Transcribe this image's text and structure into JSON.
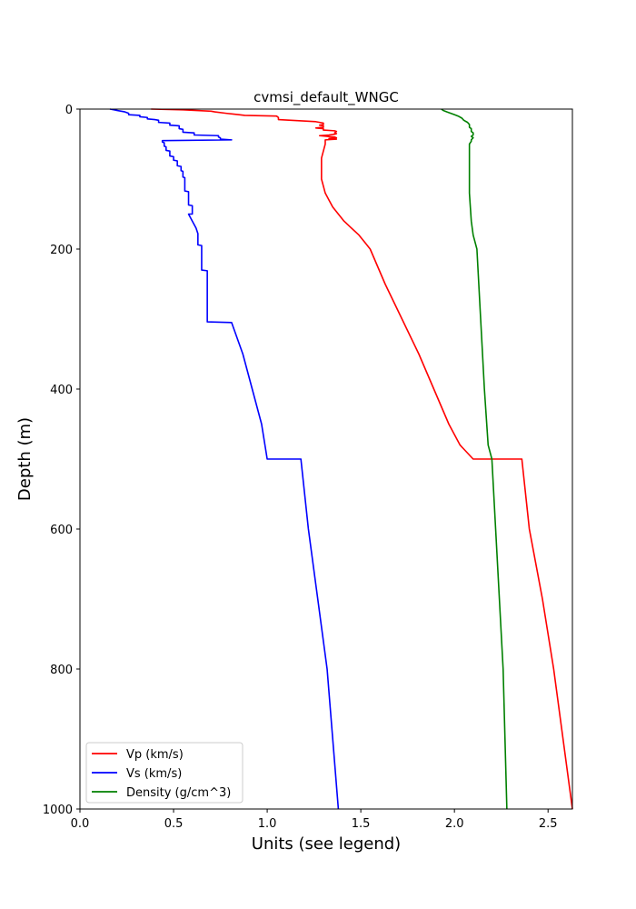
{
  "chart_data": {
    "type": "line",
    "title": "cvmsi_default_WNGC",
    "xlabel": "Units (see legend)",
    "ylabel": "Depth (m)",
    "xlim": [
      0,
      2.63
    ],
    "ylim": [
      1000,
      0
    ],
    "y_inverted": true,
    "xticks": [
      "0.0",
      "0.5",
      "1.0",
      "1.5",
      "2.0",
      "2.5"
    ],
    "xtick_values": [
      0,
      0.5,
      1.0,
      1.5,
      2.0,
      2.5
    ],
    "yticks": [
      "0",
      "200",
      "400",
      "600",
      "800",
      "1000"
    ],
    "ytick_values": [
      0,
      200,
      400,
      600,
      800,
      1000
    ],
    "grid": false,
    "legend_position": "lower-left",
    "series": [
      {
        "name": "Vp (km/s)",
        "color": "#ff0000",
        "points": [
          [
            0.38,
            0
          ],
          [
            0.55,
            1
          ],
          [
            0.7,
            3
          ],
          [
            0.72,
            4
          ],
          [
            0.78,
            6
          ],
          [
            0.85,
            8
          ],
          [
            0.88,
            9
          ],
          [
            1.05,
            10
          ],
          [
            1.06,
            12
          ],
          [
            1.06,
            15
          ],
          [
            1.26,
            18
          ],
          [
            1.3,
            20
          ],
          [
            1.3,
            22
          ],
          [
            1.28,
            23
          ],
          [
            1.3,
            24
          ],
          [
            1.3,
            26
          ],
          [
            1.26,
            27
          ],
          [
            1.3,
            28
          ],
          [
            1.3,
            30
          ],
          [
            1.36,
            31
          ],
          [
            1.37,
            32
          ],
          [
            1.36,
            34
          ],
          [
            1.37,
            35
          ],
          [
            1.36,
            36
          ],
          [
            1.33,
            37
          ],
          [
            1.28,
            38
          ],
          [
            1.36,
            40
          ],
          [
            1.37,
            41
          ],
          [
            1.33,
            42
          ],
          [
            1.37,
            43
          ],
          [
            1.31,
            44
          ],
          [
            1.31,
            45
          ],
          [
            1.31,
            50
          ],
          [
            1.3,
            60
          ],
          [
            1.29,
            70
          ],
          [
            1.29,
            80
          ],
          [
            1.29,
            90
          ],
          [
            1.29,
            100
          ],
          [
            1.3,
            110
          ],
          [
            1.31,
            120
          ],
          [
            1.33,
            130
          ],
          [
            1.35,
            140
          ],
          [
            1.38,
            150
          ],
          [
            1.41,
            160
          ],
          [
            1.45,
            170
          ],
          [
            1.49,
            180
          ],
          [
            1.52,
            190
          ],
          [
            1.55,
            200
          ],
          [
            1.63,
            250
          ],
          [
            1.72,
            300
          ],
          [
            1.81,
            350
          ],
          [
            1.89,
            400
          ],
          [
            1.97,
            450
          ],
          [
            2.03,
            480
          ],
          [
            2.1,
            500
          ],
          [
            2.36,
            500
          ],
          [
            2.4,
            600
          ],
          [
            2.47,
            700
          ],
          [
            2.53,
            800
          ],
          [
            2.58,
            900
          ],
          [
            2.63,
            1000
          ]
        ]
      },
      {
        "name": "Vs (km/s)",
        "color": "#0000ff",
        "points": [
          [
            0.16,
            0
          ],
          [
            0.18,
            1
          ],
          [
            0.2,
            2
          ],
          [
            0.24,
            4
          ],
          [
            0.26,
            6
          ],
          [
            0.26,
            8
          ],
          [
            0.32,
            9
          ],
          [
            0.32,
            11
          ],
          [
            0.36,
            12
          ],
          [
            0.36,
            14
          ],
          [
            0.4,
            15
          ],
          [
            0.42,
            16
          ],
          [
            0.42,
            19
          ],
          [
            0.48,
            20
          ],
          [
            0.48,
            23
          ],
          [
            0.53,
            24
          ],
          [
            0.53,
            28
          ],
          [
            0.55,
            29
          ],
          [
            0.55,
            33
          ],
          [
            0.61,
            34
          ],
          [
            0.61,
            37
          ],
          [
            0.74,
            38
          ],
          [
            0.74,
            40
          ],
          [
            0.75,
            41
          ],
          [
            0.75,
            43
          ],
          [
            0.81,
            44
          ],
          [
            0.44,
            45
          ],
          [
            0.44,
            47
          ],
          [
            0.45,
            48
          ],
          [
            0.45,
            53
          ],
          [
            0.46,
            54
          ],
          [
            0.46,
            59
          ],
          [
            0.48,
            60
          ],
          [
            0.48,
            67
          ],
          [
            0.5,
            68
          ],
          [
            0.5,
            73
          ],
          [
            0.52,
            74
          ],
          [
            0.52,
            81
          ],
          [
            0.54,
            82
          ],
          [
            0.54,
            88
          ],
          [
            0.55,
            89
          ],
          [
            0.55,
            97
          ],
          [
            0.56,
            98
          ],
          [
            0.56,
            117
          ],
          [
            0.58,
            118
          ],
          [
            0.58,
            137
          ],
          [
            0.6,
            138
          ],
          [
            0.6,
            150
          ],
          [
            0.58,
            150
          ],
          [
            0.6,
            160
          ],
          [
            0.62,
            170
          ],
          [
            0.63,
            178
          ],
          [
            0.63,
            194
          ],
          [
            0.65,
            195
          ],
          [
            0.65,
            230
          ],
          [
            0.68,
            231
          ],
          [
            0.68,
            304
          ],
          [
            0.81,
            305
          ],
          [
            0.87,
            350
          ],
          [
            0.92,
            400
          ],
          [
            0.97,
            450
          ],
          [
            1.0,
            500
          ],
          [
            1.18,
            500
          ],
          [
            1.22,
            600
          ],
          [
            1.27,
            700
          ],
          [
            1.32,
            800
          ],
          [
            1.35,
            900
          ],
          [
            1.38,
            1000
          ]
        ]
      },
      {
        "name": "Density (g/cm^3)",
        "color": "#008000",
        "points": [
          [
            1.93,
            0
          ],
          [
            1.94,
            2
          ],
          [
            1.96,
            4
          ],
          [
            1.98,
            6
          ],
          [
            2.0,
            8
          ],
          [
            2.02,
            10
          ],
          [
            2.04,
            13
          ],
          [
            2.05,
            16
          ],
          [
            2.07,
            19
          ],
          [
            2.08,
            22
          ],
          [
            2.08,
            26
          ],
          [
            2.09,
            28
          ],
          [
            2.09,
            32
          ],
          [
            2.1,
            34
          ],
          [
            2.1,
            37
          ],
          [
            2.09,
            39
          ],
          [
            2.1,
            41
          ],
          [
            2.09,
            44
          ],
          [
            2.09,
            46
          ],
          [
            2.08,
            50
          ],
          [
            2.08,
            70
          ],
          [
            2.08,
            100
          ],
          [
            2.08,
            120
          ],
          [
            2.085,
            140
          ],
          [
            2.09,
            160
          ],
          [
            2.1,
            180
          ],
          [
            2.12,
            200
          ],
          [
            2.14,
            300
          ],
          [
            2.16,
            400
          ],
          [
            2.18,
            480
          ],
          [
            2.2,
            500
          ],
          [
            2.22,
            600
          ],
          [
            2.24,
            700
          ],
          [
            2.26,
            800
          ],
          [
            2.27,
            900
          ],
          [
            2.28,
            1000
          ]
        ]
      }
    ]
  }
}
